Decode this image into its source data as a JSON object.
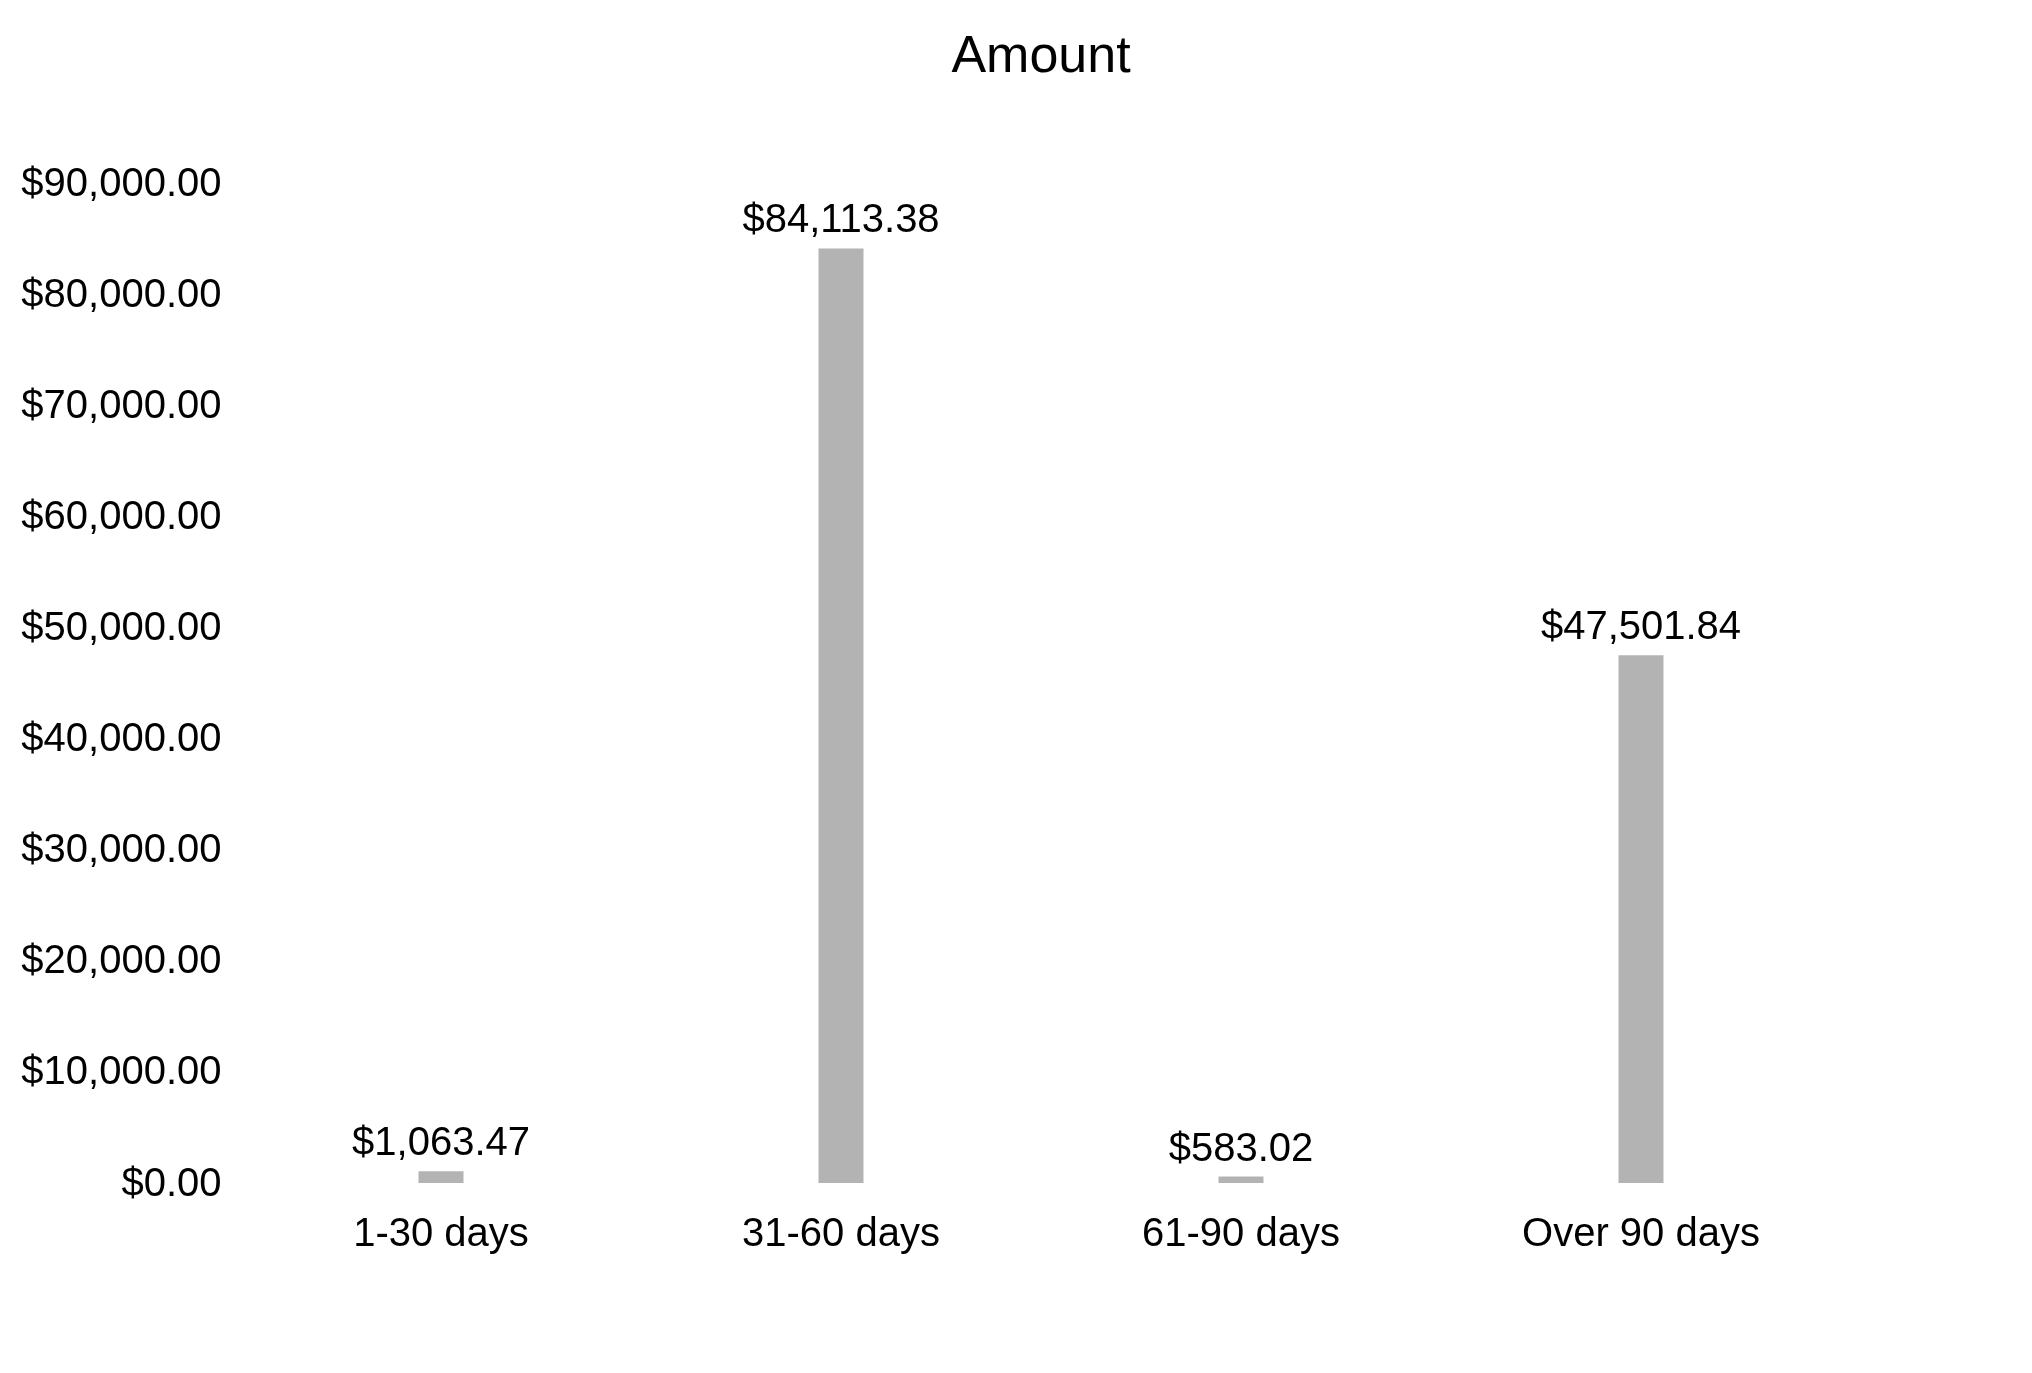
{
  "chart_data": {
    "type": "bar",
    "title": "Amount",
    "categories": [
      "1-30 days",
      "31-60 days",
      "61-90 days",
      "Over 90 days"
    ],
    "values": [
      1063.47,
      84113.38,
      583.02,
      47501.84
    ],
    "value_labels": [
      "$1,063.47",
      "$84,113.38",
      "$583.02",
      "$47,501.84"
    ],
    "color": "#b3b3b3",
    "ylim": [
      0,
      90000
    ],
    "yticks": [
      {
        "value": 0,
        "label": "$0.00"
      },
      {
        "value": 10000,
        "label": "$10,000.00"
      },
      {
        "value": 20000,
        "label": "$20,000.00"
      },
      {
        "value": 30000,
        "label": "$30,000.00"
      },
      {
        "value": 40000,
        "label": "$40,000.00"
      },
      {
        "value": 50000,
        "label": "$50,000.00"
      },
      {
        "value": 60000,
        "label": "$60,000.00"
      },
      {
        "value": 70000,
        "label": "$70,000.00"
      },
      {
        "value": 80000,
        "label": "$80,000.00"
      },
      {
        "value": 90000,
        "label": "$90,000.00"
      }
    ],
    "grid": false
  }
}
